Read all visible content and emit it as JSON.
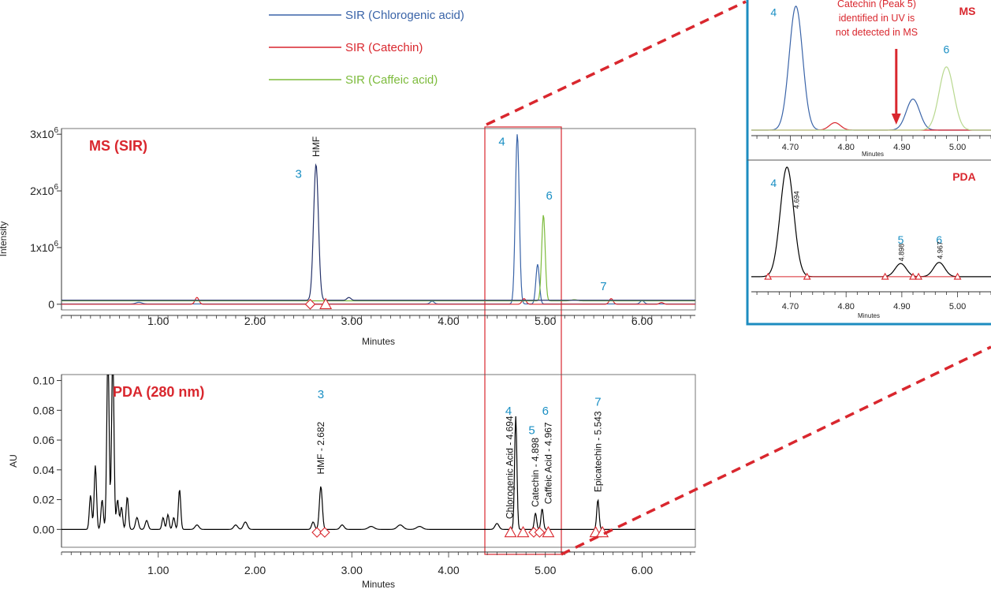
{
  "legend": {
    "items": [
      {
        "label": "SIR (Chlorogenic acid)",
        "color": "#3a64a8"
      },
      {
        "label": "SIR (Catechin)",
        "color": "#d9272e"
      },
      {
        "label": "SIR (Caffeic acid)",
        "color": "#7dbb3c"
      }
    ]
  },
  "colors": {
    "peak_number": "#1a8fc4",
    "panel_title": "#d9272e",
    "zoom": "#d9272e",
    "inset_frame": "#1d8cc0",
    "trace": "#000000"
  },
  "chart_data": [
    {
      "id": "ms",
      "type": "line",
      "title": "MS (SIR)",
      "xlabel": "Minutes",
      "ylabel": "Intensity",
      "xlim": [
        0,
        6.55
      ],
      "ylim": [
        -100000,
        3100000
      ],
      "x_ticks": [
        1.0,
        2.0,
        3.0,
        4.0,
        5.0,
        6.0
      ],
      "x_tick_labels": [
        "1.00",
        "2.00",
        "3.00",
        "4.00",
        "5.00",
        "6.00"
      ],
      "y_ticks": [
        0,
        1000000,
        2000000,
        3000000
      ],
      "y_tick_labels": [
        "0",
        "1x10",
        "2x10",
        "3x10"
      ],
      "y_tick_exponent": "6",
      "series": [
        {
          "name": "SIR (Chlorogenic acid)",
          "color": "#3a64a8",
          "baseline": 5000,
          "peaks": [
            [
              4.71,
              3000000,
              0.02
            ],
            [
              4.92,
              700000,
              0.018
            ],
            [
              6.0,
              60000,
              0.02
            ],
            [
              3.83,
              50000,
              0.02
            ],
            [
              0.8,
              30000,
              0.03
            ]
          ]
        },
        {
          "name": "SIR (Catechin)",
          "color": "#d9272e",
          "baseline": 0,
          "peaks": [
            [
              1.4,
              120000,
              0.02
            ],
            [
              4.78,
              100000,
              0.02
            ],
            [
              5.68,
              100000,
              0.02
            ],
            [
              6.2,
              30000,
              0.02
            ]
          ]
        },
        {
          "name": "SIR (Caffeic acid)",
          "color": "#7dbb3c",
          "baseline": 60000,
          "peaks": [
            [
              4.98,
              1520000,
              0.018
            ],
            [
              5.3,
              20000,
              0.03
            ]
          ]
        },
        {
          "name": "HMF",
          "color": "#27346b",
          "baseline": 70000,
          "peaks": [
            [
              2.63,
              2400000,
              0.025
            ],
            [
              2.97,
              50000,
              0.02
            ]
          ]
        }
      ],
      "peak_labels": [
        {
          "text": "3",
          "x": 2.45,
          "y": 2230000,
          "kind": "number"
        },
        {
          "text": "HMF",
          "x": 2.63,
          "y": 2600000,
          "kind": "vertical"
        },
        {
          "text": "4",
          "x": 4.55,
          "y": 2800000,
          "kind": "number"
        },
        {
          "text": "6",
          "x": 5.04,
          "y": 1850000,
          "kind": "number"
        },
        {
          "text": "7",
          "x": 5.6,
          "y": 250000,
          "kind": "number"
        }
      ],
      "markers": [
        {
          "shape": "diamond",
          "x": 2.57,
          "y": 0
        },
        {
          "shape": "triangle",
          "x": 2.73,
          "y": 0
        }
      ]
    },
    {
      "id": "pda",
      "type": "line",
      "title": "PDA (280 nm)",
      "xlabel": "Minutes",
      "ylabel": "AU",
      "xlim": [
        0,
        6.55
      ],
      "ylim": [
        -0.012,
        0.104
      ],
      "x_ticks": [
        1.0,
        2.0,
        3.0,
        4.0,
        5.0,
        6.0
      ],
      "x_tick_labels": [
        "1.00",
        "2.00",
        "3.00",
        "4.00",
        "5.00",
        "6.00"
      ],
      "y_ticks": [
        0,
        0.02,
        0.04,
        0.06,
        0.08,
        0.1
      ],
      "y_tick_labels": [
        "0.00",
        "0.02",
        "0.04",
        "0.06",
        "0.08",
        "0.10"
      ],
      "series": [
        {
          "name": "PDA",
          "color": "#000000",
          "baseline": 0,
          "peaks": [
            [
              0.3,
              0.023,
              0.012
            ],
            [
              0.35,
              0.043,
              0.012
            ],
            [
              0.42,
              0.02,
              0.012
            ],
            [
              0.48,
              0.12,
              0.012
            ],
            [
              0.53,
              0.12,
              0.012
            ],
            [
              0.58,
              0.02,
              0.012
            ],
            [
              0.62,
              0.015,
              0.012
            ],
            [
              0.68,
              0.022,
              0.012
            ],
            [
              0.78,
              0.008,
              0.015
            ],
            [
              0.88,
              0.006,
              0.015
            ],
            [
              1.05,
              0.008,
              0.012
            ],
            [
              1.1,
              0.01,
              0.012
            ],
            [
              1.16,
              0.008,
              0.012
            ],
            [
              1.22,
              0.027,
              0.012
            ],
            [
              1.4,
              0.003,
              0.02
            ],
            [
              1.8,
              0.003,
              0.02
            ],
            [
              1.9,
              0.005,
              0.02
            ],
            [
              2.6,
              0.005,
              0.015
            ],
            [
              2.68,
              0.029,
              0.015
            ],
            [
              2.9,
              0.003,
              0.02
            ],
            [
              3.2,
              0.002,
              0.03
            ],
            [
              3.5,
              0.003,
              0.03
            ],
            [
              3.7,
              0.002,
              0.03
            ],
            [
              4.5,
              0.004,
              0.02
            ],
            [
              4.694,
              0.076,
              0.012
            ],
            [
              4.898,
              0.011,
              0.012
            ],
            [
              4.967,
              0.014,
              0.012
            ],
            [
              5.543,
              0.02,
              0.012
            ]
          ]
        }
      ],
      "peak_labels": [
        {
          "text": "3",
          "x": 2.68,
          "y": 0.088,
          "kind": "number"
        },
        {
          "text": "HMF - 2.682",
          "x": 2.682,
          "y": 0.037,
          "kind": "vertical"
        },
        {
          "text": "4",
          "x": 4.62,
          "y": 0.077,
          "kind": "number"
        },
        {
          "text": "Chlorogenic Acid - 4.694",
          "x": 4.63,
          "y": 0.007,
          "kind": "vertical"
        },
        {
          "text": "5",
          "x": 4.86,
          "y": 0.064,
          "kind": "number"
        },
        {
          "text": "Catechin - 4.898",
          "x": 4.898,
          "y": 0.015,
          "kind": "vertical"
        },
        {
          "text": "6",
          "x": 5.0,
          "y": 0.077,
          "kind": "number"
        },
        {
          "text": "Caffeic Acid - 4.967",
          "x": 5.03,
          "y": 0.017,
          "kind": "vertical"
        },
        {
          "text": "7",
          "x": 5.543,
          "y": 0.083,
          "kind": "number"
        },
        {
          "text": "Epicatechin - 5.543",
          "x": 5.543,
          "y": 0.025,
          "kind": "vertical"
        }
      ],
      "markers": [
        {
          "shape": "diamond",
          "x": 2.64,
          "y": -0.002
        },
        {
          "shape": "diamond",
          "x": 2.72,
          "y": -0.002
        },
        {
          "shape": "triangle",
          "x": 4.64,
          "y": -0.002
        },
        {
          "shape": "triangle",
          "x": 4.77,
          "y": -0.002
        },
        {
          "shape": "diamond",
          "x": 4.88,
          "y": -0.002
        },
        {
          "shape": "diamond",
          "x": 4.94,
          "y": -0.002
        },
        {
          "shape": "triangle",
          "x": 5.03,
          "y": -0.002
        },
        {
          "shape": "triangle",
          "x": 5.52,
          "y": -0.002
        },
        {
          "shape": "triangle",
          "x": 5.59,
          "y": -0.002
        }
      ]
    },
    {
      "id": "inset-ms",
      "type": "line",
      "title": "MS",
      "xlabel": "Minutes",
      "xlim": [
        4.63,
        5.06
      ],
      "ylim": [
        0,
        1.05
      ],
      "x_ticks": [
        4.7,
        4.8,
        4.9,
        5.0
      ],
      "x_tick_labels": [
        "4.70",
        "4.80",
        "4.90",
        "5.00"
      ],
      "series": [
        {
          "name": "SIR (Chlorogenic acid)",
          "color": "#3a64a8",
          "baseline": 0,
          "peaks": [
            [
              4.71,
              1.0,
              0.012
            ],
            [
              4.92,
              0.25,
              0.012
            ]
          ]
        },
        {
          "name": "SIR (Catechin)",
          "color": "#d9272e",
          "baseline": 0,
          "peaks": [
            [
              4.78,
              0.06,
              0.01
            ]
          ]
        },
        {
          "name": "SIR (Caffeic acid)",
          "color": "#b8d88f",
          "baseline": 0,
          "peaks": [
            [
              4.98,
              0.51,
              0.013
            ]
          ]
        }
      ],
      "annotation": {
        "lines": [
          "Catechin (Peak 5)",
          "identified in UV is",
          "not detected in MS"
        ],
        "arrow_x": 4.89
      },
      "peak_labels": [
        {
          "text": "4",
          "x": 4.67,
          "y": 0.92,
          "kind": "number"
        },
        {
          "text": "6",
          "x": 4.98,
          "y": 0.62,
          "kind": "number"
        }
      ],
      "markers": []
    },
    {
      "id": "inset-pda",
      "type": "line",
      "title": "PDA",
      "xlabel": "Minutes",
      "xlim": [
        4.63,
        5.06
      ],
      "ylim": [
        -0.08,
        1.05
      ],
      "x_ticks": [
        4.7,
        4.8,
        4.9,
        5.0
      ],
      "x_tick_labels": [
        "4.70",
        "4.80",
        "4.90",
        "5.00"
      ],
      "series": [
        {
          "name": "PDA",
          "color": "#000000",
          "baseline": 0,
          "peaks": [
            [
              4.694,
              1.0,
              0.012
            ],
            [
              4.898,
              0.12,
              0.01
            ],
            [
              4.967,
              0.13,
              0.01
            ]
          ]
        }
      ],
      "peak_labels": [
        {
          "text": "4",
          "x": 4.67,
          "y": 0.82,
          "kind": "number"
        },
        {
          "text": "4.694",
          "x": 4.71,
          "y": 0.62,
          "kind": "vertical"
        },
        {
          "text": "5",
          "x": 4.898,
          "y": 0.3,
          "kind": "number"
        },
        {
          "text": "4.898",
          "x": 4.898,
          "y": 0.14,
          "kind": "vertical"
        },
        {
          "text": "6",
          "x": 4.967,
          "y": 0.3,
          "kind": "number"
        },
        {
          "text": "4.967",
          "x": 4.967,
          "y": 0.16,
          "kind": "vertical"
        }
      ],
      "markers": [
        {
          "shape": "triangle",
          "x": 4.66,
          "y": 0
        },
        {
          "shape": "triangle",
          "x": 4.73,
          "y": 0
        },
        {
          "shape": "triangle",
          "x": 4.87,
          "y": 0
        },
        {
          "shape": "triangle",
          "x": 4.92,
          "y": 0
        },
        {
          "shape": "triangle",
          "x": 4.93,
          "y": 0
        },
        {
          "shape": "triangle",
          "x": 5.0,
          "y": 0
        }
      ]
    }
  ]
}
